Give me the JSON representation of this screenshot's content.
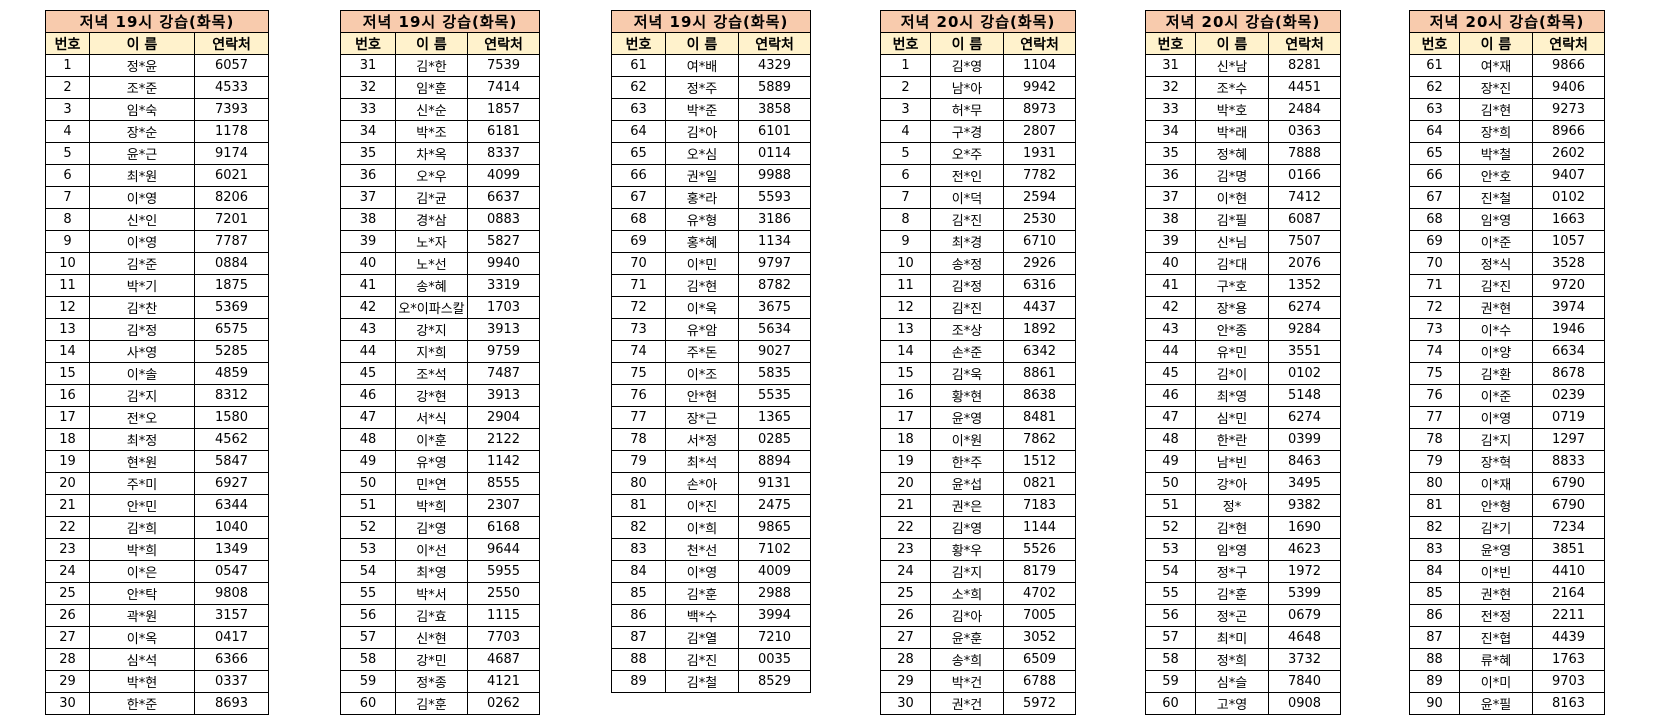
{
  "column_headers": [
    "번호",
    "이 름",
    "연락처"
  ],
  "colors": {
    "title_bg": "#f8cbad",
    "header_bg": "#fff2cc"
  },
  "tables": [
    {
      "title": "저녁 19시 강습(화목)",
      "rows": [
        [
          "1",
          "정*윤",
          "6057"
        ],
        [
          "2",
          "조*준",
          "4533"
        ],
        [
          "3",
          "임*숙",
          "7393"
        ],
        [
          "4",
          "장*순",
          "1178"
        ],
        [
          "5",
          "윤*근",
          "9174"
        ],
        [
          "6",
          "최*원",
          "6021"
        ],
        [
          "7",
          "이*영",
          "8206"
        ],
        [
          "8",
          "신*인",
          "7201"
        ],
        [
          "9",
          "이*영",
          "7787"
        ],
        [
          "10",
          "김*준",
          "0884"
        ],
        [
          "11",
          "박*기",
          "1875"
        ],
        [
          "12",
          "김*찬",
          "5369"
        ],
        [
          "13",
          "김*정",
          "6575"
        ],
        [
          "14",
          "사*영",
          "5285"
        ],
        [
          "15",
          "이*솔",
          "4859"
        ],
        [
          "16",
          "김*지",
          "8312"
        ],
        [
          "17",
          "전*오",
          "1580"
        ],
        [
          "18",
          "최*정",
          "4562"
        ],
        [
          "19",
          "현*원",
          "5847"
        ],
        [
          "20",
          "주*미",
          "6927"
        ],
        [
          "21",
          "안*민",
          "6344"
        ],
        [
          "22",
          "김*희",
          "1040"
        ],
        [
          "23",
          "박*희",
          "1349"
        ],
        [
          "24",
          "이*은",
          "0547"
        ],
        [
          "25",
          "안*탁",
          "9808"
        ],
        [
          "26",
          "곽*원",
          "3157"
        ],
        [
          "27",
          "이*옥",
          "0417"
        ],
        [
          "28",
          "심*석",
          "6366"
        ],
        [
          "29",
          "박*현",
          "0337"
        ],
        [
          "30",
          "한*준",
          "8693"
        ]
      ]
    },
    {
      "title": "저녁 19시 강습(화목)",
      "rows": [
        [
          "31",
          "김*한",
          "7539"
        ],
        [
          "32",
          "임*훈",
          "7414"
        ],
        [
          "33",
          "신*순",
          "1857"
        ],
        [
          "34",
          "박*조",
          "6181"
        ],
        [
          "35",
          "차*옥",
          "8337"
        ],
        [
          "36",
          "오*우",
          "4099"
        ],
        [
          "37",
          "김*균",
          "6637"
        ],
        [
          "38",
          "경*삼",
          "0883"
        ],
        [
          "39",
          "노*자",
          "5827"
        ],
        [
          "40",
          "노*선",
          "9940"
        ],
        [
          "41",
          "송*혜",
          "3319"
        ],
        [
          "42",
          "오*이파스칼",
          "1703"
        ],
        [
          "43",
          "강*지",
          "3913"
        ],
        [
          "44",
          "지*희",
          "9759"
        ],
        [
          "45",
          "조*석",
          "7487"
        ],
        [
          "46",
          "강*현",
          "3913"
        ],
        [
          "47",
          "서*식",
          "2904"
        ],
        [
          "48",
          "이*훈",
          "2122"
        ],
        [
          "49",
          "유*영",
          "1142"
        ],
        [
          "50",
          "민*연",
          "8555"
        ],
        [
          "51",
          "박*희",
          "2307"
        ],
        [
          "52",
          "김*영",
          "6168"
        ],
        [
          "53",
          "이*선",
          "9644"
        ],
        [
          "54",
          "최*영",
          "5955"
        ],
        [
          "55",
          "박*서",
          "2550"
        ],
        [
          "56",
          "김*효",
          "1115"
        ],
        [
          "57",
          "신*현",
          "7703"
        ],
        [
          "58",
          "강*민",
          "4687"
        ],
        [
          "59",
          "정*종",
          "4121"
        ],
        [
          "60",
          "김*훈",
          "0262"
        ]
      ]
    },
    {
      "title": "저녁 19시 강습(화목)",
      "rows": [
        [
          "61",
          "여*배",
          "4329"
        ],
        [
          "62",
          "정*주",
          "5889"
        ],
        [
          "63",
          "박*준",
          "3858"
        ],
        [
          "64",
          "김*아",
          "6101"
        ],
        [
          "65",
          "오*심",
          "0114"
        ],
        [
          "66",
          "권*일",
          "9988"
        ],
        [
          "67",
          "홍*라",
          "5593"
        ],
        [
          "68",
          "유*형",
          "3186"
        ],
        [
          "69",
          "홍*혜",
          "1134"
        ],
        [
          "70",
          "이*민",
          "9797"
        ],
        [
          "71",
          "김*현",
          "8782"
        ],
        [
          "72",
          "이*욱",
          "3675"
        ],
        [
          "73",
          "유*암",
          "5634"
        ],
        [
          "74",
          "주*돈",
          "9027"
        ],
        [
          "75",
          "이*조",
          "5835"
        ],
        [
          "76",
          "안*현",
          "5535"
        ],
        [
          "77",
          "장*근",
          "1365"
        ],
        [
          "78",
          "서*정",
          "0285"
        ],
        [
          "79",
          "최*석",
          "8894"
        ],
        [
          "80",
          "손*아",
          "9131"
        ],
        [
          "81",
          "이*진",
          "2475"
        ],
        [
          "82",
          "이*희",
          "9865"
        ],
        [
          "83",
          "천*선",
          "7102"
        ],
        [
          "84",
          "이*영",
          "4009"
        ],
        [
          "85",
          "김*훈",
          "2988"
        ],
        [
          "86",
          "백*수",
          "3994"
        ],
        [
          "87",
          "김*열",
          "7210"
        ],
        [
          "88",
          "김*진",
          "0035"
        ],
        [
          "89",
          "김*철",
          "8529"
        ]
      ]
    },
    {
      "title": "저녁 20시 강습(화목)",
      "rows": [
        [
          "1",
          "김*영",
          "1104"
        ],
        [
          "2",
          "남*아",
          "9942"
        ],
        [
          "3",
          "허*무",
          "8973"
        ],
        [
          "4",
          "구*경",
          "2807"
        ],
        [
          "5",
          "오*주",
          "1931"
        ],
        [
          "6",
          "전*인",
          "7782"
        ],
        [
          "7",
          "이*덕",
          "2594"
        ],
        [
          "8",
          "김*진",
          "2530"
        ],
        [
          "9",
          "최*경",
          "6710"
        ],
        [
          "10",
          "송*정",
          "2926"
        ],
        [
          "11",
          "김*정",
          "6316"
        ],
        [
          "12",
          "김*진",
          "4437"
        ],
        [
          "13",
          "조*상",
          "1892"
        ],
        [
          "14",
          "손*준",
          "6342"
        ],
        [
          "15",
          "김*욱",
          "8861"
        ],
        [
          "16",
          "황*현",
          "8638"
        ],
        [
          "17",
          "윤*영",
          "8481"
        ],
        [
          "18",
          "이*원",
          "7862"
        ],
        [
          "19",
          "한*주",
          "1512"
        ],
        [
          "20",
          "윤*섭",
          "0821"
        ],
        [
          "21",
          "권*은",
          "7183"
        ],
        [
          "22",
          "김*영",
          "1144"
        ],
        [
          "23",
          "황*우",
          "5526"
        ],
        [
          "24",
          "김*지",
          "8179"
        ],
        [
          "25",
          "소*희",
          "4702"
        ],
        [
          "26",
          "김*아",
          "7005"
        ],
        [
          "27",
          "윤*훈",
          "3052"
        ],
        [
          "28",
          "송*희",
          "6509"
        ],
        [
          "29",
          "박*건",
          "6788"
        ],
        [
          "30",
          "권*건",
          "5972"
        ]
      ]
    },
    {
      "title": "저녁 20시 강습(화목)",
      "rows": [
        [
          "31",
          "신*남",
          "8281"
        ],
        [
          "32",
          "조*수",
          "4451"
        ],
        [
          "33",
          "박*호",
          "2484"
        ],
        [
          "34",
          "박*래",
          "0363"
        ],
        [
          "35",
          "정*혜",
          "7888"
        ],
        [
          "36",
          "김*명",
          "0166"
        ],
        [
          "37",
          "이*현",
          "7412"
        ],
        [
          "38",
          "김*필",
          "6087"
        ],
        [
          "39",
          "신*님",
          "7507"
        ],
        [
          "40",
          "김*대",
          "2076"
        ],
        [
          "41",
          "구*호",
          "1352"
        ],
        [
          "42",
          "장*용",
          "6274"
        ],
        [
          "43",
          "안*종",
          "9284"
        ],
        [
          "44",
          "유*민",
          "3551"
        ],
        [
          "45",
          "김*이",
          "0102"
        ],
        [
          "46",
          "최*영",
          "5148"
        ],
        [
          "47",
          "심*민",
          "6274"
        ],
        [
          "48",
          "한*란",
          "0399"
        ],
        [
          "49",
          "남*빈",
          "8463"
        ],
        [
          "50",
          "강*아",
          "3495"
        ],
        [
          "51",
          "정*",
          "9382"
        ],
        [
          "52",
          "김*현",
          "1690"
        ],
        [
          "53",
          "임*영",
          "4623"
        ],
        [
          "54",
          "정*구",
          "1972"
        ],
        [
          "55",
          "김*훈",
          "5399"
        ],
        [
          "56",
          "정*곤",
          "0679"
        ],
        [
          "57",
          "최*미",
          "4648"
        ],
        [
          "58",
          "정*희",
          "3732"
        ],
        [
          "59",
          "심*슬",
          "7840"
        ],
        [
          "60",
          "고*영",
          "0908"
        ]
      ]
    },
    {
      "title": "저녁 20시 강습(화목)",
      "rows": [
        [
          "61",
          "여*재",
          "9866"
        ],
        [
          "62",
          "장*진",
          "9406"
        ],
        [
          "63",
          "김*현",
          "9273"
        ],
        [
          "64",
          "장*희",
          "8966"
        ],
        [
          "65",
          "박*철",
          "2602"
        ],
        [
          "66",
          "안*호",
          "9407"
        ],
        [
          "67",
          "진*철",
          "0102"
        ],
        [
          "68",
          "임*영",
          "1663"
        ],
        [
          "69",
          "이*준",
          "1057"
        ],
        [
          "70",
          "정*식",
          "3528"
        ],
        [
          "71",
          "김*진",
          "9720"
        ],
        [
          "72",
          "권*현",
          "3974"
        ],
        [
          "73",
          "이*수",
          "1946"
        ],
        [
          "74",
          "이*양",
          "6634"
        ],
        [
          "75",
          "김*환",
          "8678"
        ],
        [
          "76",
          "이*준",
          "0239"
        ],
        [
          "77",
          "이*영",
          "0719"
        ],
        [
          "78",
          "김*지",
          "1297"
        ],
        [
          "79",
          "장*혁",
          "8833"
        ],
        [
          "80",
          "이*재",
          "6790"
        ],
        [
          "81",
          "안*형",
          "6790"
        ],
        [
          "82",
          "김*기",
          "7234"
        ],
        [
          "83",
          "윤*영",
          "3851"
        ],
        [
          "84",
          "이*빈",
          "4410"
        ],
        [
          "85",
          "권*현",
          "2164"
        ],
        [
          "86",
          "전*정",
          "2211"
        ],
        [
          "87",
          "진*협",
          "4439"
        ],
        [
          "88",
          "류*혜",
          "1763"
        ],
        [
          "89",
          "이*미",
          "9703"
        ],
        [
          "90",
          "윤*필",
          "8163"
        ]
      ]
    }
  ]
}
